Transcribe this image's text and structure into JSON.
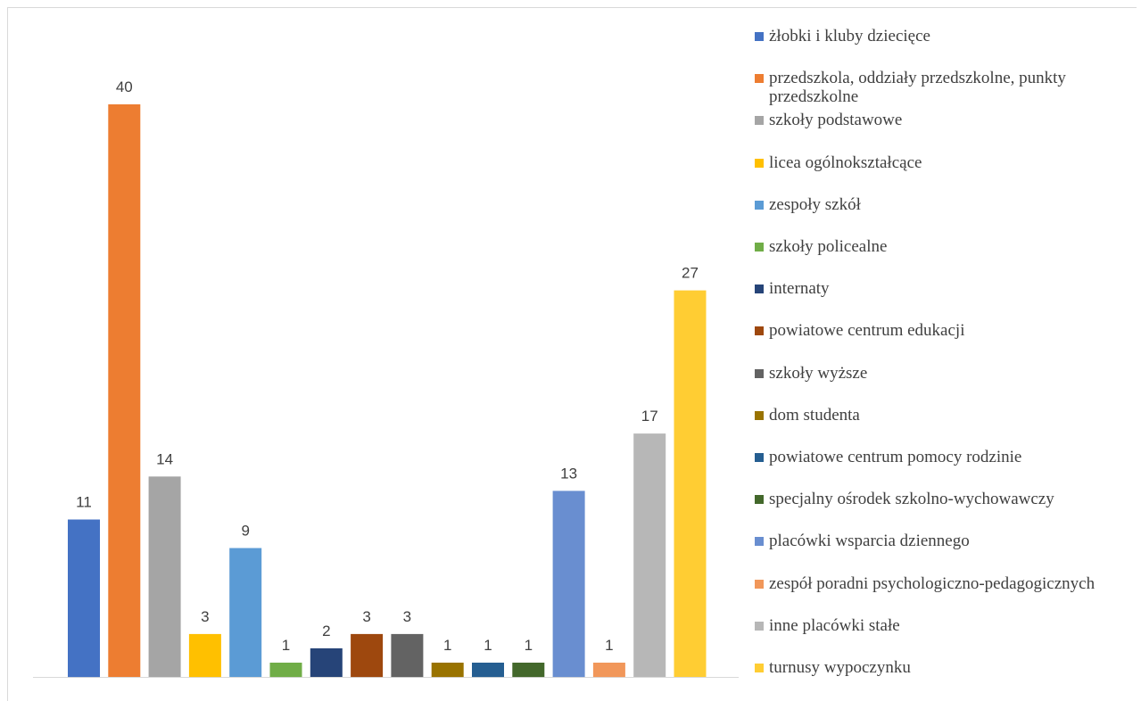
{
  "chart_data": {
    "type": "bar",
    "title": "",
    "xlabel": "",
    "ylabel": "",
    "ylim": [
      0,
      42
    ],
    "grid": false,
    "legend_position": "right",
    "data_labels": true,
    "categories": [
      "żłobki i kluby dziecięce",
      "przedszkola, oddziały przedszkolne, punkty przedszkolne",
      "szkoły podstawowe",
      "licea ogólnokształcące",
      "zespoły szkół",
      "szkoły policealne",
      "internaty",
      "powiatowe centrum edukacji",
      "szkoły wyższe",
      "dom studenta",
      "powiatowe centrum pomocy rodzinie",
      "specjalny ośrodek szkolno-wychowawczy",
      "placówki wsparcia dziennego",
      "zespół poradni psychologiczno-pedagogicznych",
      "inne placówki stałe",
      "turnusy wypoczynku"
    ],
    "values": [
      11,
      40,
      14,
      3,
      9,
      1,
      2,
      3,
      3,
      1,
      1,
      1,
      13,
      1,
      17,
      27
    ],
    "colors": [
      "#4472c4",
      "#ed7d31",
      "#a5a5a5",
      "#ffc000",
      "#5b9bd5",
      "#70ad47",
      "#264478",
      "#9e480e",
      "#636363",
      "#997300",
      "#255e91",
      "#43682b",
      "#698ed0",
      "#f1975a",
      "#b7b7b7",
      "#ffcd33"
    ],
    "legend": [
      "żłobki i kluby dziecięce",
      "przedszkola, oddziały przedszkolne, punkty przedszkolne",
      "szkoły podstawowe",
      "licea ogólnokształcące",
      "zespoły szkół",
      "szkoły policealne",
      "internaty",
      "powiatowe centrum edukacji",
      "szkoły wyższe",
      "dom studenta",
      "powiatowe centrum pomocy rodzinie",
      "specjalny ośrodek szkolno-wychowawczy",
      "placówki wsparcia dziennego",
      "zespół poradni psychologiczno-pedagogicznych",
      "inne placówki stałe",
      "turnusy wypoczynku"
    ]
  }
}
